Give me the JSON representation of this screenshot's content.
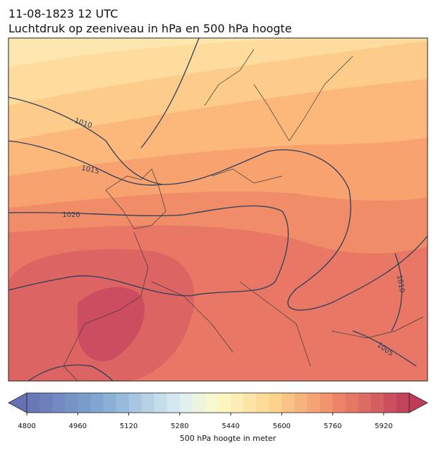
{
  "header": {
    "title": "11-08-1823 12 UTC",
    "subtitle": "Luchtdruk op zeeniveau in hPa en 500 hPa hoogte"
  },
  "isobars": [
    {
      "value": 1010
    },
    {
      "value": 1015
    },
    {
      "value": 1020
    },
    {
      "value": 1010
    },
    {
      "value": 1005
    }
  ],
  "colorbar": {
    "label": "500 hPa hoogte in meter",
    "range": [
      4800,
      6000
    ],
    "step": 40,
    "ticks": [
      4800,
      4960,
      5120,
      5280,
      5440,
      5600,
      5760,
      5920
    ]
  }
}
